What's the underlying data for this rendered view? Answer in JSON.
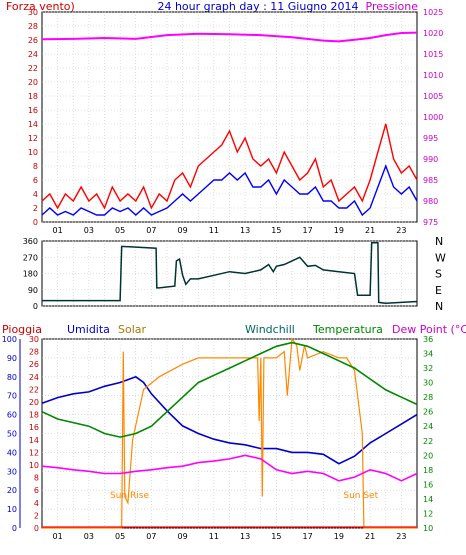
{
  "header": {
    "wind_label": "Forza vento",
    "wind_unit": ")",
    "title": "24 hour graph day : 11 Giugno 2014",
    "pressure_label": "Pressione"
  },
  "direction_labels": [
    "N",
    "W",
    "S",
    "E",
    "N"
  ],
  "bottom_header": {
    "rain": "Pioggia",
    "humidity": "Umidita",
    "solar": "Solar",
    "windchill": "Windchill",
    "temperature": "Temperatura",
    "dewpoint": "Dew Point (°C)"
  },
  "annotations": {
    "sunrise": "Sun Rise",
    "sunset": "Sun Set"
  },
  "colors": {
    "wind_gust": "#ff0000",
    "wind_avg": "#0000ff",
    "pressure": "#ff00ff",
    "direction": "#003333",
    "rain": "#ff0000",
    "humidity": "#0000cc",
    "solar": "#ff8800",
    "temperature": "#008800",
    "dewpoint": "#ff00ff",
    "axis_wind": "#cc0000",
    "axis_pressure": "#cc00cc",
    "axis_humidity": "#0000cc",
    "axis_rain": "#cc0000",
    "axis_temp": "#008800",
    "axis_solar": "#aa7700"
  },
  "chart_data": [
    {
      "type": "line",
      "name": "wind_pressure",
      "x_ticks": [
        "01",
        "03",
        "05",
        "07",
        "09",
        "11",
        "13",
        "15",
        "17",
        "19",
        "21",
        "23"
      ],
      "wind_axis": {
        "ticks": [
          0,
          2,
          4,
          6,
          8,
          10,
          12,
          14,
          16,
          18,
          20,
          22,
          24,
          26,
          28,
          30
        ],
        "ylim": [
          0,
          30
        ]
      },
      "pressure_axis": {
        "ticks": [
          975,
          980,
          985,
          990,
          995,
          1000,
          1005,
          1010,
          1015,
          1020,
          1025
        ],
        "ylim": [
          975,
          1025
        ]
      },
      "series": [
        {
          "key": "gust",
          "x": [
            0,
            0.5,
            1,
            1.5,
            2,
            2.5,
            3,
            3.5,
            4,
            4.5,
            5,
            5.5,
            6,
            6.5,
            7,
            7.5,
            8,
            8.5,
            9,
            9.5,
            10,
            10.5,
            11,
            11.5,
            12,
            12.5,
            13,
            13.5,
            14,
            14.5,
            15,
            15.5,
            16,
            16.5,
            17,
            17.5,
            18,
            18.5,
            19,
            19.5,
            20,
            20.5,
            21,
            21.5,
            22,
            22.5,
            23,
            23.5,
            24
          ],
          "y": [
            3,
            4,
            2,
            4,
            3,
            5,
            3,
            4,
            2,
            5,
            3,
            4,
            3,
            5,
            2,
            4,
            3,
            6,
            7,
            5,
            8,
            9,
            10,
            11,
            13,
            10,
            12,
            9,
            8,
            9,
            7,
            10,
            8,
            6,
            7,
            9,
            5,
            6,
            3,
            4,
            5,
            3,
            6,
            10,
            14,
            9,
            7,
            8,
            6
          ]
        },
        {
          "key": "avg",
          "x": [
            0,
            0.5,
            1,
            1.5,
            2,
            2.5,
            3,
            3.5,
            4,
            4.5,
            5,
            5.5,
            6,
            6.5,
            7,
            7.5,
            8,
            8.5,
            9,
            9.5,
            10,
            10.5,
            11,
            11.5,
            12,
            12.5,
            13,
            13.5,
            14,
            14.5,
            15,
            15.5,
            16,
            16.5,
            17,
            17.5,
            18,
            18.5,
            19,
            19.5,
            20,
            20.5,
            21,
            21.5,
            22,
            22.5,
            23,
            23.5,
            24
          ],
          "y": [
            1,
            2,
            1,
            1.5,
            1,
            2,
            1.5,
            1,
            1,
            2,
            1.5,
            2,
            1,
            2,
            1,
            1.5,
            2,
            3,
            4,
            3,
            4,
            5,
            6,
            6,
            7,
            6,
            7,
            5,
            5,
            6,
            4,
            6,
            5,
            4,
            4,
            5,
            3,
            3,
            2,
            2,
            3,
            1,
            2,
            5,
            8,
            5,
            4,
            5,
            3
          ]
        },
        {
          "key": "pressure",
          "x": [
            0,
            2,
            4,
            6,
            8,
            10,
            12,
            14,
            16,
            18,
            19,
            20,
            21,
            22,
            23,
            24
          ],
          "y": [
            1018.5,
            1018.6,
            1018.8,
            1018.6,
            1019.5,
            1019.8,
            1019.7,
            1019.5,
            1019.0,
            1018.2,
            1018.0,
            1018.4,
            1018.8,
            1019.5,
            1020.0,
            1020.1
          ]
        }
      ]
    },
    {
      "type": "line",
      "name": "wind_direction",
      "y_ticks": [
        0,
        90,
        180,
        270,
        360
      ],
      "ylim": [
        0,
        360
      ],
      "series": [
        {
          "key": "direction",
          "x": [
            0,
            4.8,
            5,
            5.1,
            7.3,
            7.35,
            7.5,
            8.5,
            8.6,
            8.8,
            9,
            9.2,
            9.5,
            10,
            11,
            12,
            13,
            14,
            14.5,
            14.8,
            15,
            15.5,
            16,
            16.5,
            17,
            17.5,
            18,
            19,
            20,
            20.2,
            20.5,
            21,
            21.1,
            21.5,
            21.55,
            22,
            23,
            24
          ],
          "y": [
            30,
            30,
            30,
            330,
            320,
            100,
            100,
            110,
            250,
            260,
            170,
            120,
            150,
            150,
            170,
            190,
            180,
            200,
            230,
            190,
            220,
            230,
            250,
            270,
            220,
            225,
            200,
            190,
            180,
            60,
            60,
            60,
            350,
            350,
            20,
            15,
            20,
            25
          ]
        }
      ]
    },
    {
      "type": "line",
      "name": "temp_humidity_solar",
      "humidity_axis": {
        "ticks": [
          0,
          10,
          20,
          30,
          40,
          50,
          60,
          70,
          80,
          90,
          100
        ],
        "ylim": [
          0,
          100
        ]
      },
      "rain_axis": {
        "ticks": [
          0,
          2,
          4,
          6,
          8,
          10,
          12,
          14,
          16,
          18,
          20,
          22,
          24,
          26,
          28,
          30
        ],
        "ylim": [
          0,
          30
        ]
      },
      "temp_axis": {
        "ticks": [
          10,
          12,
          14,
          16,
          18,
          20,
          22,
          24,
          26,
          28,
          30,
          32,
          34,
          36
        ],
        "ylim": [
          10,
          36
        ]
      },
      "series": [
        {
          "key": "humidity",
          "x": [
            0,
            1,
            2,
            3,
            4,
            5,
            6,
            6.5,
            7,
            8,
            9,
            10,
            11,
            12,
            13,
            14,
            15,
            16,
            17,
            18,
            19,
            20,
            21,
            22,
            23,
            24
          ],
          "y": [
            66,
            69,
            71,
            72,
            75,
            77,
            80,
            77,
            71,
            62,
            54,
            50,
            47,
            45,
            44,
            42,
            42,
            40,
            40,
            39,
            34,
            38,
            45,
            50,
            55,
            60
          ]
        },
        {
          "key": "solar",
          "x": [
            0,
            5.1,
            5.2,
            5.3,
            5.5,
            5.8,
            6.5,
            7.5,
            9,
            10,
            11,
            12,
            13,
            13.8,
            13.9,
            14,
            14.1,
            14.2,
            14.4,
            15,
            15.5,
            15.7,
            16,
            16.3,
            16.5,
            16.8,
            17,
            18,
            19,
            19.5,
            20,
            20.5,
            20.6,
            24
          ],
          "y": [
            0,
            0,
            28,
            5,
            4,
            14,
            22,
            24,
            26,
            27,
            27,
            27,
            27,
            27,
            17,
            27,
            5,
            27,
            27,
            27,
            28,
            21,
            30,
            29,
            25,
            29,
            27,
            28,
            27,
            27,
            25,
            15,
            0,
            0
          ]
        },
        {
          "key": "temperature",
          "x": [
            0,
            1,
            2,
            3,
            4,
            5,
            6,
            7,
            8,
            9,
            10,
            11,
            12,
            13,
            14,
            15,
            16,
            17,
            18,
            19,
            20,
            21,
            22,
            23,
            24
          ],
          "y": [
            26,
            25,
            24.5,
            24,
            23,
            22.5,
            23,
            24,
            26,
            28,
            30,
            31,
            32,
            33,
            34,
            35,
            35.5,
            35,
            34,
            33,
            32,
            30.5,
            29,
            28,
            27
          ]
        },
        {
          "key": "dewpoint",
          "x": [
            0,
            1,
            2,
            3,
            4,
            5,
            6,
            7,
            8,
            9,
            10,
            11,
            12,
            13,
            14,
            15,
            16,
            17,
            18,
            19,
            20,
            21,
            22,
            23,
            24
          ],
          "y": [
            18.5,
            18.3,
            18.0,
            17.8,
            17.5,
            17.5,
            17.8,
            18,
            18.3,
            18.5,
            19,
            19.2,
            19.5,
            20,
            19.5,
            18,
            17.5,
            17.8,
            17.5,
            16.5,
            17,
            18,
            17.5,
            16.5,
            17.5
          ]
        }
      ]
    }
  ]
}
